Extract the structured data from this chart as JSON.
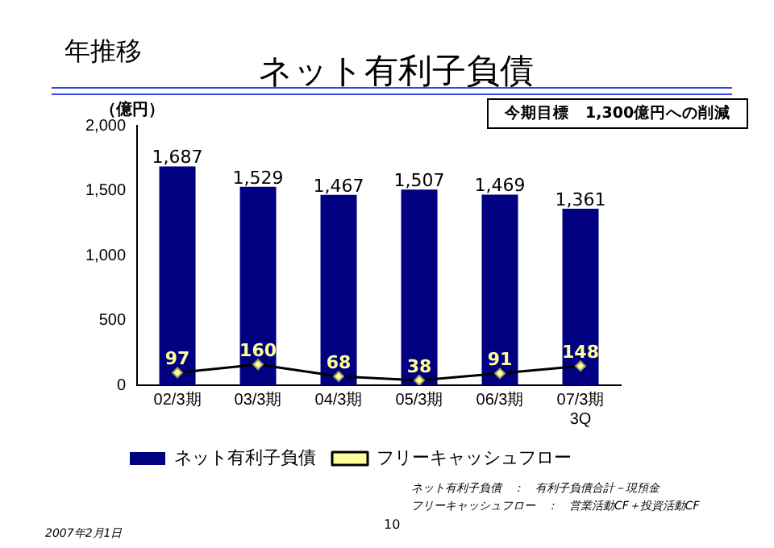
{
  "chart_data": {
    "type": "bar",
    "title": "ネット有利子負債",
    "subtitle": "年推移",
    "ylabel": "（億円）",
    "categories": [
      "02/3期",
      "03/3期",
      "04/3期",
      "05/3期",
      "06/3期",
      "07/3期\n3Q"
    ],
    "series": [
      {
        "name": "ネット有利子負債",
        "color": "#000080",
        "values": [
          1687,
          1529,
          1467,
          1507,
          1469,
          1361
        ],
        "value_labels": [
          "1,687",
          "1,529",
          "1,467",
          "1,507",
          "1,469",
          "1,361"
        ]
      },
      {
        "name": "フリーキャッシュフロー",
        "type": "line",
        "color": "#000000",
        "values": [
          97,
          160,
          68,
          38,
          91,
          148
        ],
        "value_labels": [
          "97",
          "160",
          "68",
          "38",
          "91",
          "148"
        ]
      }
    ],
    "ylim": [
      0,
      2000
    ],
    "yticks": [
      {
        "value": 0,
        "label": "0"
      },
      {
        "value": 500,
        "label": "500"
      },
      {
        "value": 1000,
        "label": "1,000"
      },
      {
        "value": 1500,
        "label": "1,500"
      },
      {
        "value": 2000,
        "label": "2,000"
      }
    ],
    "grid": false,
    "legend": "bottom",
    "marker": "diamond",
    "annotations": [
      "今期目標　1,300億円への削減",
      "ネット有利子負債　：　有利子負債合計－現預金",
      "フリーキャッシュフロー　：　営業活動CF＋投資活動CF",
      "10",
      "2007年2月1日"
    ]
  }
}
